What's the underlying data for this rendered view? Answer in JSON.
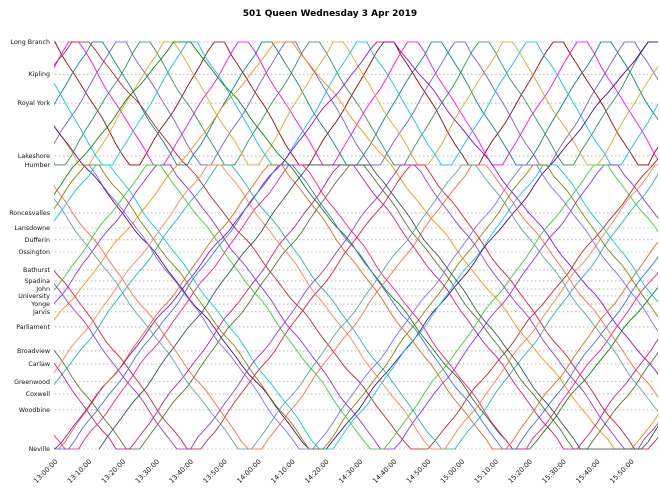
{
  "title": "501 Queen Wednesday 3 Apr 2019",
  "chart_data": {
    "type": "line",
    "subtype": "marey-time-distance-diagram",
    "title": "501 Queen Wednesday 3 Apr 2019",
    "xlabel": "",
    "ylabel": "",
    "x_axis": {
      "tick_labels": [
        "13:00:00",
        "13:10:00",
        "13:20:00",
        "13:30:00",
        "13:40:00",
        "13:50:00",
        "14:00:00",
        "14:10:00",
        "14:20:00",
        "14:30:00",
        "14:40:00",
        "14:50:00",
        "15:00:00",
        "15:10:00",
        "15:20:00",
        "15:30:00",
        "15:40:00",
        "15:50:00"
      ],
      "tick_interval_min": 10,
      "range_min": [
        0,
        177
      ]
    },
    "grid": "horizontal-dotted",
    "legend": "none",
    "stations": [
      {
        "name": "Long Branch",
        "pos": 0
      },
      {
        "name": "Kipling",
        "pos": 7.9
      },
      {
        "name": "Royal York",
        "pos": 15.0
      },
      {
        "name": "Lakeshore",
        "pos": 28.0
      },
      {
        "name": "Humber",
        "pos": 30.2
      },
      {
        "name": "Roncesvalles",
        "pos": 42.0
      },
      {
        "name": "Lansdowne",
        "pos": 45.7
      },
      {
        "name": "Dufferin",
        "pos": 48.6
      },
      {
        "name": "Ossington",
        "pos": 51.6
      },
      {
        "name": "Bathurst",
        "pos": 56.0
      },
      {
        "name": "Spadina",
        "pos": 58.7
      },
      {
        "name": "John",
        "pos": 60.7
      },
      {
        "name": "University",
        "pos": 62.4
      },
      {
        "name": "Yonge",
        "pos": 64.4
      },
      {
        "name": "Jarvis",
        "pos": 66.3
      },
      {
        "name": "Parliament",
        "pos": 70.0
      },
      {
        "name": "Broadview",
        "pos": 75.9
      },
      {
        "name": "Carlaw",
        "pos": 79.1
      },
      {
        "name": "Greenwood",
        "pos": 83.5
      },
      {
        "name": "Coxwell",
        "pos": 86.5
      },
      {
        "name": "Woodbine",
        "pos": 90.4
      },
      {
        "name": "Neville",
        "pos": 100
      }
    ],
    "trips": [
      {
        "color": "#8b0000",
        "origin": "Long Branch",
        "dest": "Humber",
        "start_min": -50,
        "leg_min": 22,
        "dwell_min": 3,
        "legs": 10
      },
      {
        "color": "#ff00ff",
        "origin": "Long Branch",
        "dest": "Humber",
        "start_min": -43,
        "leg_min": 22,
        "dwell_min": 3,
        "legs": 10
      },
      {
        "color": "#008080",
        "origin": "Long Branch",
        "dest": "Humber",
        "start_min": -36,
        "leg_min": 22,
        "dwell_min": 3,
        "legs": 10
      },
      {
        "color": "#6a5acd",
        "origin": "Long Branch",
        "dest": "Humber",
        "start_min": -29,
        "leg_min": 22,
        "dwell_min": 3,
        "legs": 10
      },
      {
        "color": "#2e8b57",
        "origin": "Long Branch",
        "dest": "Humber",
        "start_min": -22,
        "leg_min": 22,
        "dwell_min": 3,
        "legs": 10
      },
      {
        "color": "#daa520",
        "origin": "Long Branch",
        "dest": "Humber",
        "start_min": -15,
        "leg_min": 22,
        "dwell_min": 3,
        "legs": 10
      },
      {
        "color": "#00bfff",
        "origin": "Long Branch",
        "dest": "Humber",
        "start_min": -8,
        "leg_min": 22,
        "dwell_min": 3,
        "legs": 10
      },
      {
        "color": "#4b0082",
        "origin": "Neville",
        "dest": "Long Branch",
        "start_min": -120,
        "leg_min": 95,
        "dwell_min": 5,
        "legs": 4
      },
      {
        "color": "#b22222",
        "origin": "Neville",
        "dest": "Long Branch",
        "start_min": -90,
        "leg_min": 95,
        "dwell_min": 5,
        "legs": 4
      },
      {
        "color": "#008000",
        "origin": "Neville",
        "dest": "Long Branch",
        "start_min": -60,
        "leg_min": 95,
        "dwell_min": 5,
        "legs": 4
      },
      {
        "color": "#ff8c00",
        "origin": "Neville",
        "dest": "Long Branch",
        "start_min": -30,
        "leg_min": 95,
        "dwell_min": 5,
        "legs": 4
      },
      {
        "color": "#9400d3",
        "origin": "Neville",
        "dest": "Long Branch",
        "start_min": 0,
        "leg_min": 95,
        "dwell_min": 5,
        "legs": 3
      },
      {
        "color": "#ff1493",
        "origin": "Neville",
        "dest": "Humber",
        "start_min": -125,
        "leg_min": 62,
        "dwell_min": 4,
        "legs": 6
      },
      {
        "color": "#00ced1",
        "origin": "Humber",
        "dest": "Neville",
        "start_min": -116,
        "leg_min": 62,
        "dwell_min": 4,
        "legs": 6
      },
      {
        "color": "#556b2f",
        "origin": "Neville",
        "dest": "Humber",
        "start_min": -107,
        "leg_min": 62,
        "dwell_min": 4,
        "legs": 6
      },
      {
        "color": "#8a2be2",
        "origin": "Humber",
        "dest": "Neville",
        "start_min": -98,
        "leg_min": 62,
        "dwell_min": 4,
        "legs": 6
      },
      {
        "color": "#dc143c",
        "origin": "Neville",
        "dest": "Humber",
        "start_min": -89,
        "leg_min": 62,
        "dwell_min": 4,
        "legs": 6
      },
      {
        "color": "#20b2aa",
        "origin": "Humber",
        "dest": "Neville",
        "start_min": -80,
        "leg_min": 62,
        "dwell_min": 4,
        "legs": 6
      },
      {
        "color": "#ff6347",
        "origin": "Neville",
        "dest": "Humber",
        "start_min": -71,
        "leg_min": 62,
        "dwell_min": 4,
        "legs": 6
      },
      {
        "color": "#4169e1",
        "origin": "Humber",
        "dest": "Neville",
        "start_min": -62,
        "leg_min": 62,
        "dwell_min": 4,
        "legs": 6
      },
      {
        "color": "#808000",
        "origin": "Neville",
        "dest": "Humber",
        "start_min": -53,
        "leg_min": 62,
        "dwell_min": 4,
        "legs": 6
      },
      {
        "color": "#c71585",
        "origin": "Humber",
        "dest": "Neville",
        "start_min": -44,
        "leg_min": 62,
        "dwell_min": 4,
        "legs": 6
      },
      {
        "color": "#32cd32",
        "origin": "Neville",
        "dest": "Humber",
        "start_min": -35,
        "leg_min": 62,
        "dwell_min": 4,
        "legs": 6
      },
      {
        "color": "#9932cc",
        "origin": "Humber",
        "dest": "Neville",
        "start_min": -26,
        "leg_min": 62,
        "dwell_min": 4,
        "legs": 6
      },
      {
        "color": "#ff7f50",
        "origin": "Neville",
        "dest": "Humber",
        "start_min": -17,
        "leg_min": 62,
        "dwell_min": 4,
        "legs": 6
      },
      {
        "color": "#5f9ea0",
        "origin": "Humber",
        "dest": "Neville",
        "start_min": -8,
        "leg_min": 62,
        "dwell_min": 4,
        "legs": 6
      },
      {
        "color": "#d2691e",
        "origin": "Neville",
        "dest": "Humber",
        "start_min": 1,
        "leg_min": 62,
        "dwell_min": 4,
        "legs": 5
      },
      {
        "color": "#7b68ee",
        "origin": "Humber",
        "dest": "Neville",
        "start_min": 10,
        "leg_min": 62,
        "dwell_min": 4,
        "legs": 5
      },
      {
        "color": "#2f4f4f",
        "origin": "Neville",
        "dest": "Humber",
        "start_min": 13,
        "leg_min": 62,
        "dwell_min": 18,
        "legs": 3
      }
    ]
  }
}
